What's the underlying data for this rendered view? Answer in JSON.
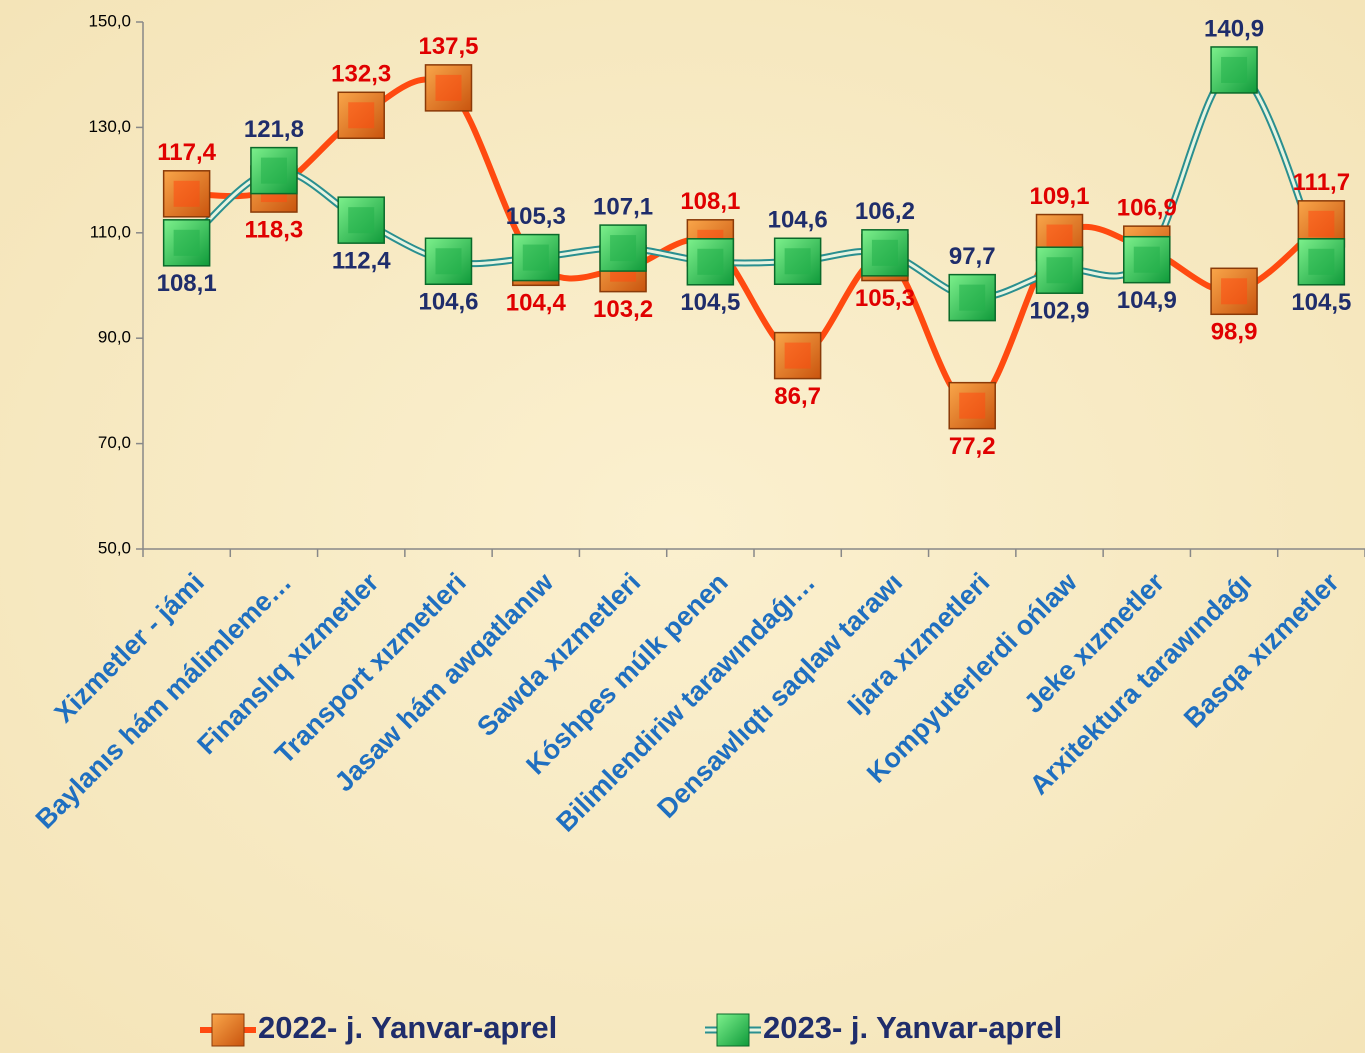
{
  "chart_data": {
    "type": "line",
    "categories": [
      "Xizmetler - jámi",
      "Baylanıs hám málimleme…",
      "Finanslıq xızmetler",
      "Transport xızmetleri",
      "Jasaw hám awqatlanıw",
      "Sawda xızmetleri",
      "Kóshpes múlk penen",
      "Bilimlendiriw tarawındaǵı…",
      "Densawlıqtı saqlaw tarawı",
      "Ijara xızmetleri",
      "Kompyuterlerdi ońlaw",
      "Jeke xızmetler",
      "Arxitektura tarawındaǵı",
      "Basqa xızmetler"
    ],
    "series": [
      {
        "name": "2022- j. Yanvar-aprel",
        "color": "#ff4a10",
        "values": [
          117.4,
          118.3,
          132.3,
          137.5,
          104.4,
          103.2,
          108.1,
          86.7,
          105.3,
          77.2,
          109.1,
          106.9,
          98.9,
          111.7
        ],
        "value_labels": [
          "117,4",
          "118,3",
          "132,3",
          "137,5",
          "104,4",
          "103,2",
          "108,1",
          "86,7",
          "105,3",
          "77,2",
          "109,1",
          "106,9",
          "98,9",
          "111,7"
        ]
      },
      {
        "name": "2023- j. Yanvar-aprel",
        "color": "#22b04a",
        "values": [
          108.1,
          121.8,
          112.4,
          104.6,
          105.3,
          107.1,
          104.5,
          104.6,
          106.2,
          97.7,
          102.9,
          104.9,
          140.9,
          104.5
        ],
        "value_labels": [
          "108,1",
          "121,8",
          "112,4",
          "104,6",
          "105,3",
          "107,1",
          "104,5",
          "104,6",
          "106,2",
          "97,7",
          "102,9",
          "104,9",
          "140,9",
          "104,5"
        ]
      }
    ],
    "ylim": [
      50,
      150
    ],
    "yticks": [
      {
        "value": 50,
        "label": "50,0"
      },
      {
        "value": 70,
        "label": "70,0"
      },
      {
        "value": 90,
        "label": "90,0"
      },
      {
        "value": 110,
        "label": "110,0"
      },
      {
        "value": 130,
        "label": "130,0"
      },
      {
        "value": 150,
        "label": "150,0"
      }
    ]
  }
}
